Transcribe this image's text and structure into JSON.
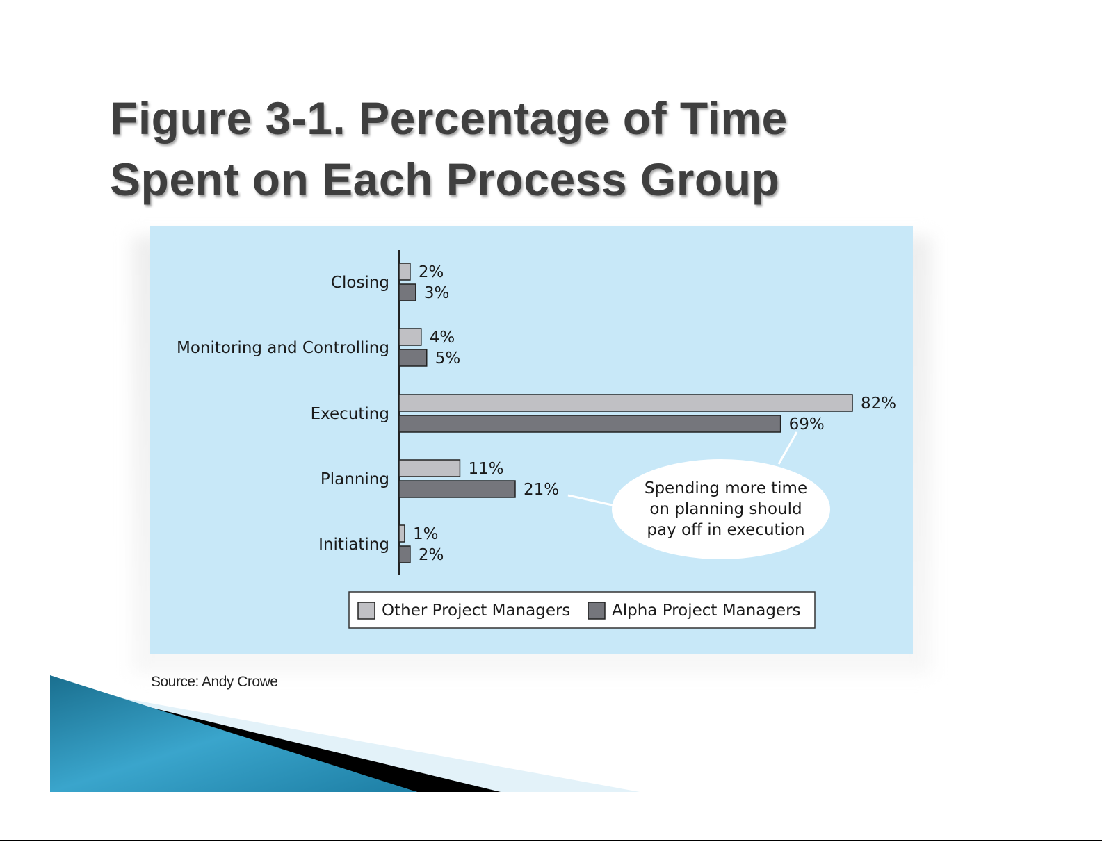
{
  "title_line1": "Figure 3-1. Percentage of Time",
  "title_line2": "Spent on Each Process Group",
  "source": "Source: Andy Crowe",
  "chart_data": {
    "type": "bar",
    "orientation": "horizontal",
    "categories": [
      "Closing",
      "Monitoring and Controlling",
      "Executing",
      "Planning",
      "Initiating"
    ],
    "series": [
      {
        "name": "Other Project Managers",
        "values": [
          2,
          4,
          82,
          11,
          1
        ],
        "color": "#c0c0c4"
      },
      {
        "name": "Alpha Project Managers",
        "values": [
          3,
          5,
          69,
          21,
          2
        ],
        "color": "#75767c"
      }
    ],
    "value_suffix": "%",
    "xlim": [
      0,
      82
    ],
    "legend_position": "bottom",
    "background": "#c8e8f8",
    "annotation": {
      "lines": [
        "Spending more time",
        "on planning should",
        "pay off in execution"
      ]
    }
  }
}
